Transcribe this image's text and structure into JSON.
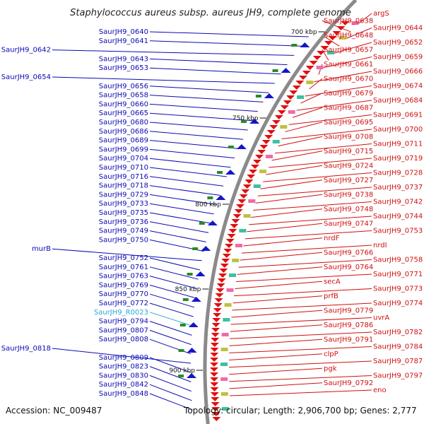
{
  "title": "Staphylococcus aureus subsp. aureus JH9, complete genome",
  "footer": {
    "accession": "Accession: NC_009487",
    "summary": "Topology: circular; Length: 2,906,700 bp; Genes: 2,777"
  },
  "colors": {
    "left_label": "#0a0ab4",
    "right_label": "#d01010",
    "rna_label": "#2aa8d8",
    "backbone": "#8a8a8a",
    "forward_gene": "#e01010",
    "reverse_gene": "#1515c8"
  },
  "scale_ticks": [
    "700 kbp",
    "750 kbp",
    "800 kbp",
    "850 kbp",
    "900 kbp"
  ],
  "left_labels": [
    "SaurJH9_0640",
    "SaurJH9_0641",
    "SaurJH9_0642",
    "SaurJH9_0643",
    "SaurJH9_0653",
    "SaurJH9_0654",
    "SaurJH9_0656",
    "SaurJH9_0658",
    "SaurJH9_0660",
    "SaurJH9_0665",
    "SaurJH9_0680",
    "SaurJH9_0686",
    "SaurJH9_0689",
    "SaurJH9_0699",
    "SaurJH9_0704",
    "SaurJH9_0710",
    "SaurJH9_0716",
    "SaurJH9_0718",
    "SaurJH9_0729",
    "SaurJH9_0733",
    "SaurJH9_0735",
    "SaurJH9_0736",
    "SaurJH9_0749",
    "SaurJH9_0750",
    "murB",
    "SaurJH9_0752",
    "SaurJH9_0761",
    "SaurJH9_0763",
    "SaurJH9_0769",
    "SaurJH9_0770",
    "SaurJH9_0772",
    "SaurJH9_R0023",
    "SaurJH9_0794",
    "SaurJH9_0807",
    "SaurJH9_0808",
    "SaurJH9_0818",
    "SaurJH9_0809",
    "SaurJH9_0823",
    "SaurJH9_0830",
    "SaurJH9_0842",
    "SaurJH9_0848"
  ],
  "right_labels": [
    "argS",
    "SaurJH9_0638",
    "SaurJH9_0644",
    "SaurJH9_0648",
    "SaurJH9_0652",
    "SaurJH9_0657",
    "SaurJH9_0659",
    "SaurJH9_0661",
    "SaurJH9_0666",
    "SaurJH9_0670",
    "SaurJH9_0674",
    "SaurJH9_0679",
    "SaurJH9_0684",
    "SaurJH9_0687",
    "SaurJH9_0691",
    "SaurJH9_0695",
    "SaurJH9_0700",
    "SaurJH9_0708",
    "SaurJH9_0711",
    "SaurJH9_0715",
    "SaurJH9_0719",
    "SaurJH9_0724",
    "SaurJH9_0728",
    "SaurJH9_0727",
    "SaurJH9_0737",
    "SaurJH9_0738",
    "SaurJH9_0742",
    "SaurJH9_0748",
    "SaurJH9_0744",
    "SaurJH9_0747",
    "SaurJH9_0753",
    "nrdF",
    "nrdI",
    "SaurJH9_0766",
    "SaurJH9_0758",
    "SaurJH9_0764",
    "SaurJH9_0771",
    "secA",
    "SaurJH9_0773",
    "prfB",
    "SaurJH9_0774",
    "SaurJH9_0779",
    "uvrA",
    "SaurJH9_0786",
    "SaurJH9_0782",
    "SaurJH9_0791",
    "SaurJH9_0784",
    "clpP",
    "SaurJH9_0787",
    "pgk",
    "SaurJH9_0797",
    "SaurJH9_0792",
    "eno"
  ]
}
